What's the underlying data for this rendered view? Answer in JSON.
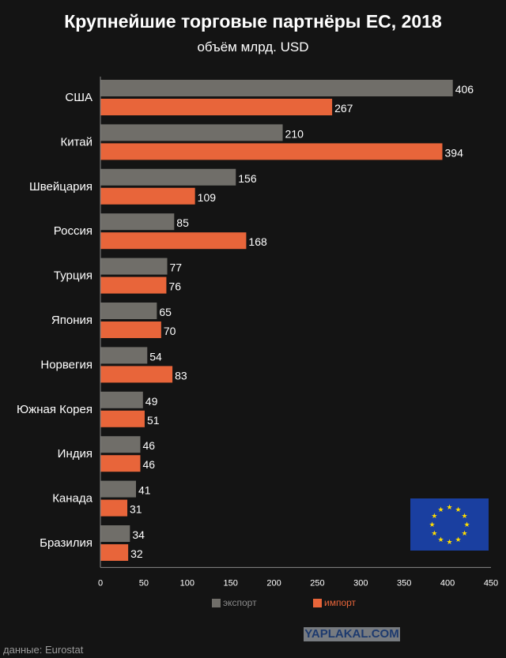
{
  "chart_data": {
    "type": "bar",
    "orientation": "horizontal",
    "title": "Крупнейшие торговые партнёры ЕС, 2018",
    "subtitle": "объём млрд. USD",
    "categories": [
      "США",
      "Китай",
      "Швейцария",
      "Россия",
      "Турция",
      "Япония",
      "Норвегия",
      "Южная Корея",
      "Индия",
      "Канада",
      "Бразилия"
    ],
    "series": [
      {
        "name": "экспорт",
        "color": "#706e69",
        "values": [
          406,
          210,
          156,
          85,
          77,
          65,
          54,
          49,
          46,
          41,
          34
        ]
      },
      {
        "name": "импорт",
        "color": "#e8653a",
        "values": [
          267,
          394,
          109,
          168,
          76,
          70,
          83,
          51,
          46,
          31,
          32
        ]
      }
    ],
    "xlim": [
      0,
      450
    ],
    "xticks": [
      0,
      50,
      100,
      150,
      200,
      250,
      300,
      350,
      400,
      450
    ],
    "legend": "bottom-center",
    "grid": false
  },
  "source": "данные: Eurostat",
  "watermark": "YAPLAKAL.COM"
}
